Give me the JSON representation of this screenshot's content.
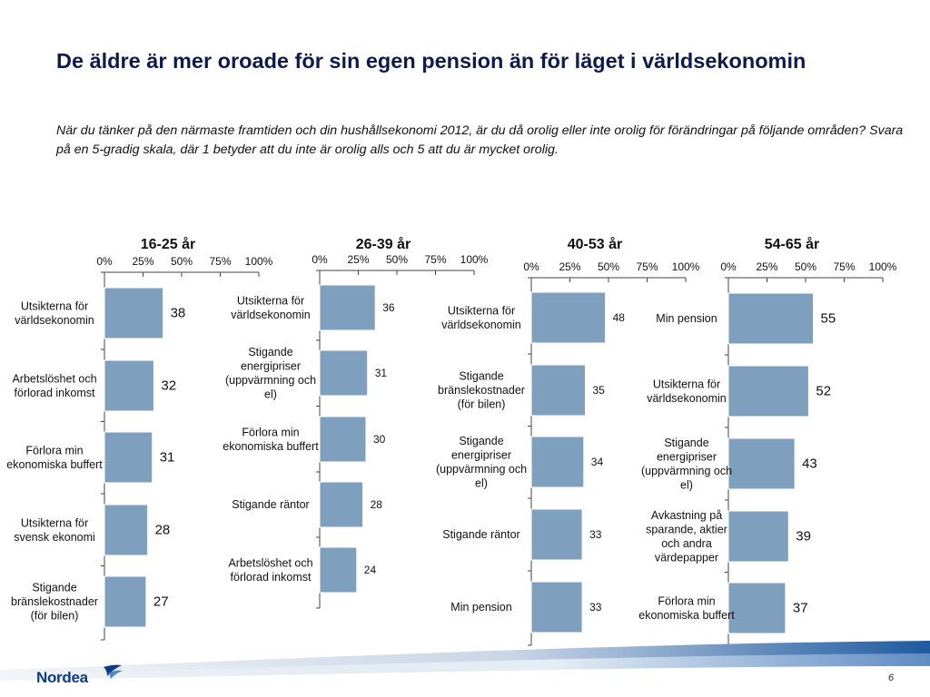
{
  "title": "De äldre är mer oroade för sin egen pension än för läget i världsekonomin",
  "subtitle": "När du tänker på den närmaste framtiden och din hushållsekonomi 2012, är du då orolig eller inte orolig för förändringar på följande områden? Svara på en 5-gradig skala, där 1 betyder att du inte är orolig alls och 5 att du är mycket orolig.",
  "page_number": "6",
  "brand": {
    "name": "Nordea",
    "color": "#0a3c8a"
  },
  "colors": {
    "bar": "#7f9fbf",
    "bar_stroke": "#ffffff",
    "axis": "#444444"
  },
  "chart_data": [
    {
      "type": "bar",
      "orientation": "horizontal",
      "title": "16-25 år",
      "xticks": [
        "0%",
        "25%",
        "50%",
        "75%",
        "100%"
      ],
      "xlim": [
        0,
        100
      ],
      "categories": [
        "Utsikterna för världsekonomin",
        "Arbetslöshet och förlorad inkomst",
        "Förlora min ekonomiska buffert",
        "Utsikterna för svensk ekonomi",
        "Stigande bränslekostnader (för bilen)"
      ],
      "values": [
        38,
        32,
        31,
        28,
        27
      ]
    },
    {
      "type": "bar",
      "orientation": "horizontal",
      "title": "26-39 år",
      "xticks": [
        "0%",
        "25%",
        "50%",
        "75%",
        "100%"
      ],
      "xlim": [
        0,
        100
      ],
      "categories": [
        "Utsikterna för världsekonomin",
        "Stigande energipriser (uppvärmning och el)",
        "Förlora min ekonomiska buffert",
        "Stigande räntor",
        "Arbetslöshet och förlorad inkomst"
      ],
      "values": [
        36,
        31,
        30,
        28,
        24
      ]
    },
    {
      "type": "bar",
      "orientation": "horizontal",
      "title": "40-53 år",
      "xticks": [
        "0%",
        "25%",
        "50%",
        "75%",
        "100%"
      ],
      "xlim": [
        0,
        100
      ],
      "categories": [
        "Utsikterna för världsekonomin",
        "Stigande bränslekostnader (för bilen)",
        "Stigande energipriser (uppvärmning och el)",
        "Stigande räntor",
        "Min pension"
      ],
      "values": [
        48,
        35,
        34,
        33,
        33
      ]
    },
    {
      "type": "bar",
      "orientation": "horizontal",
      "title": "54-65 år",
      "xticks": [
        "0%",
        "25%",
        "50%",
        "75%",
        "100%"
      ],
      "xlim": [
        0,
        100
      ],
      "categories": [
        "Min pension",
        "Utsikterna för världsekonomin",
        "Stigande energipriser (uppvärmning och el)",
        "Avkastning på sparande, aktier och andra värdepapper",
        "Förlora min ekonomiska buffert"
      ],
      "values": [
        55,
        52,
        43,
        39,
        37
      ]
    }
  ]
}
